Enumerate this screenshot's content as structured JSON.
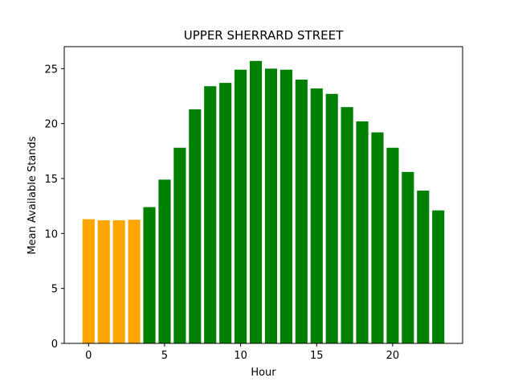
{
  "chart_data": {
    "type": "bar",
    "title": "UPPER SHERRARD STREET",
    "xlabel": "Hour",
    "ylabel": "Mean Available Stands",
    "x": [
      0,
      1,
      2,
      3,
      4,
      5,
      6,
      7,
      8,
      9,
      10,
      11,
      12,
      13,
      14,
      15,
      16,
      17,
      18,
      19,
      20,
      21,
      22,
      23
    ],
    "values": [
      11.3,
      11.2,
      11.2,
      11.25,
      12.4,
      14.9,
      17.8,
      21.3,
      23.4,
      23.7,
      24.9,
      25.7,
      25.0,
      24.9,
      24.0,
      23.2,
      22.7,
      21.5,
      20.2,
      19.2,
      17.8,
      15.6,
      13.9,
      12.1
    ],
    "bar_colors": [
      "#FFA500",
      "#FFA500",
      "#FFA500",
      "#FFA500",
      "#008000",
      "#008000",
      "#008000",
      "#008000",
      "#008000",
      "#008000",
      "#008000",
      "#008000",
      "#008000",
      "#008000",
      "#008000",
      "#008000",
      "#008000",
      "#008000",
      "#008000",
      "#008000",
      "#008000",
      "#008000",
      "#008000",
      "#008000"
    ],
    "xlim": [
      -1.6,
      24.6
    ],
    "ylim": [
      0,
      27
    ],
    "xticks": [
      0,
      5,
      10,
      15,
      20
    ],
    "xtick_labels": [
      "0",
      "5",
      "10",
      "15",
      "20"
    ],
    "yticks": [
      0,
      5,
      10,
      15,
      20,
      25
    ],
    "ytick_labels": [
      "0",
      "5",
      "10",
      "15",
      "20",
      "25"
    ],
    "grid": false,
    "legend": "none"
  }
}
